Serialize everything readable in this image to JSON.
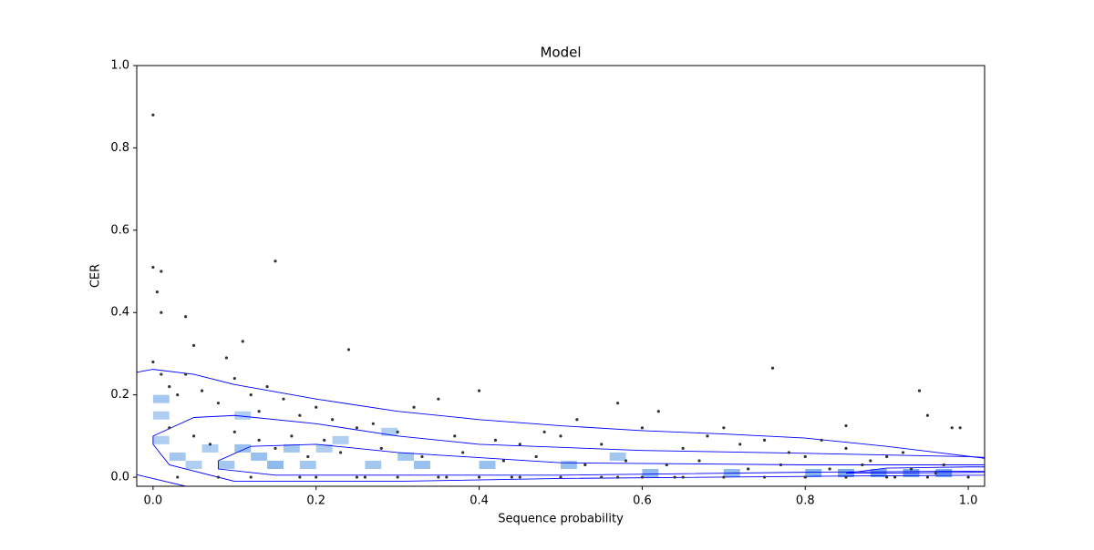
{
  "chart_data": {
    "type": "scatter",
    "title": "Model",
    "x_label": "Sequence probability",
    "y_label": "CER",
    "xlim": [
      -0.02,
      1.02
    ],
    "ylim": [
      -0.022,
      1.0
    ],
    "xticks": [
      {
        "value": 0,
        "label": "0.0"
      },
      {
        "value": 0.2,
        "label": "0.2"
      },
      {
        "value": 0.4,
        "label": "0.4"
      },
      {
        "value": 0.6,
        "label": "0.6"
      },
      {
        "value": 0.8,
        "label": "0.8"
      },
      {
        "value": 1,
        "label": "1.0"
      }
    ],
    "yticks": [
      {
        "value": 0,
        "label": "0.0"
      },
      {
        "value": 0.2,
        "label": "0.2"
      },
      {
        "value": 0.4,
        "label": "0.4"
      },
      {
        "value": 0.6,
        "label": "0.6"
      },
      {
        "value": 0.8,
        "label": "0.8"
      },
      {
        "value": 1,
        "label": "1.0"
      }
    ],
    "point_color": "#333333",
    "contour_color": "#0000ff",
    "cell_color": "#4a90e2",
    "cell_size": [
      0.02,
      0.02
    ],
    "cells": {
      "x": [
        0.0,
        0.0,
        0.0,
        0.02,
        0.04,
        0.06,
        0.08,
        0.1,
        0.1,
        0.12,
        0.14,
        0.16,
        0.18,
        0.2,
        0.22,
        0.26,
        0.28,
        0.3,
        0.32,
        0.4,
        0.5,
        0.56,
        0.6,
        0.7,
        0.8,
        0.84,
        0.88,
        0.92,
        0.96
      ],
      "y": [
        0.18,
        0.14,
        0.08,
        0.04,
        0.02,
        0.06,
        0.02,
        0.14,
        0.06,
        0.04,
        0.02,
        0.06,
        0.02,
        0.06,
        0.08,
        0.02,
        0.1,
        0.04,
        0.02,
        0.02,
        0.02,
        0.04,
        0.0,
        0.0,
        0.0,
        0.0,
        0.0,
        0.0,
        0.0
      ],
      "counts": [
        4,
        3,
        3,
        4,
        3,
        3,
        4,
        3,
        5,
        5,
        6,
        4,
        4,
        3,
        3,
        4,
        3,
        4,
        5,
        5,
        5,
        4,
        6,
        6,
        7,
        8,
        8,
        8,
        8
      ]
    },
    "x": [
      0.0,
      0.0,
      0.01,
      0.005,
      0.01,
      0.04,
      0.15,
      0.24,
      0.11,
      0.05,
      0.76,
      0.94,
      0.85,
      0.98,
      0.0,
      0.01,
      0.02,
      0.03,
      0.04,
      0.06,
      0.08,
      0.09,
      0.1,
      0.12,
      0.13,
      0.14,
      0.16,
      0.18,
      0.2,
      0.22,
      0.25,
      0.27,
      0.3,
      0.32,
      0.35,
      0.37,
      0.4,
      0.42,
      0.45,
      0.48,
      0.5,
      0.52,
      0.55,
      0.57,
      0.6,
      0.62,
      0.65,
      0.68,
      0.7,
      0.72,
      0.75,
      0.78,
      0.8,
      0.82,
      0.85,
      0.88,
      0.9,
      0.92,
      0.95,
      0.97,
      0.99,
      0.02,
      0.05,
      0.07,
      0.1,
      0.13,
      0.15,
      0.17,
      0.19,
      0.21,
      0.23,
      0.28,
      0.33,
      0.38,
      0.43,
      0.47,
      0.53,
      0.58,
      0.63,
      0.67,
      0.73,
      0.77,
      0.83,
      0.87,
      0.93,
      0.96,
      0.2,
      0.25,
      0.3,
      0.35,
      0.4,
      0.45,
      0.5,
      0.55,
      0.6,
      0.65,
      0.7,
      0.75,
      0.8,
      0.85,
      0.9,
      0.95,
      1.0,
      0.03,
      0.08,
      0.12,
      0.18,
      0.26,
      0.36,
      0.44,
      0.57,
      0.64,
      0.8,
      0.91
    ],
    "y": [
      0.88,
      0.51,
      0.5,
      0.45,
      0.4,
      0.39,
      0.525,
      0.31,
      0.33,
      0.32,
      0.265,
      0.21,
      0.125,
      0.12,
      0.28,
      0.25,
      0.22,
      0.2,
      0.25,
      0.21,
      0.18,
      0.29,
      0.24,
      0.2,
      0.16,
      0.22,
      0.19,
      0.15,
      0.17,
      0.14,
      0.12,
      0.13,
      0.11,
      0.17,
      0.19,
      0.1,
      0.21,
      0.09,
      0.08,
      0.11,
      0.1,
      0.14,
      0.08,
      0.18,
      0.12,
      0.16,
      0.07,
      0.1,
      0.12,
      0.08,
      0.09,
      0.06,
      0.05,
      0.09,
      0.07,
      0.04,
      0.05,
      0.06,
      0.15,
      0.03,
      0.12,
      0.12,
      0.1,
      0.08,
      0.11,
      0.09,
      0.07,
      0.1,
      0.05,
      0.09,
      0.06,
      0.07,
      0.05,
      0.06,
      0.04,
      0.05,
      0.03,
      0.04,
      0.03,
      0.04,
      0.02,
      0.03,
      0.02,
      0.03,
      0.02,
      0.01,
      0.0,
      0.0,
      0.0,
      0.0,
      0.0,
      0.0,
      0.0,
      0.0,
      0.0,
      0.0,
      0.0,
      0.0,
      0.0,
      0.0,
      0.0,
      0.0,
      0.0,
      0.0,
      0.0,
      0.0,
      0.0,
      0.0,
      0.0,
      0.0,
      0.0,
      0.0,
      0.0,
      0.0
    ],
    "contours": [
      {
        "x": [
          -0.02,
          0.0,
          0.05,
          0.1,
          0.2,
          0.3,
          0.4,
          0.5,
          0.6,
          0.7,
          0.8,
          0.9,
          1.02
        ],
        "y": [
          0.255,
          0.262,
          0.25,
          0.225,
          0.19,
          0.16,
          0.14,
          0.125,
          0.113,
          0.105,
          0.095,
          0.075,
          0.046
        ]
      },
      {
        "x": [
          -0.02,
          0.04
        ],
        "y": [
          0.006,
          -0.022
        ]
      },
      {
        "x": [
          0.0,
          0.05,
          0.1,
          0.2,
          0.3,
          0.4,
          0.6,
          0.8,
          1.0,
          1.02,
          1.02,
          0.8,
          0.5,
          0.3,
          0.1,
          0.02,
          0.0,
          0.0
        ],
        "y": [
          0.1,
          0.145,
          0.15,
          0.13,
          0.1,
          0.08,
          0.065,
          0.058,
          0.05,
          0.048,
          0.005,
          0.002,
          -0.003,
          -0.01,
          -0.01,
          0.03,
          0.08,
          0.1
        ]
      },
      {
        "x": [
          0.08,
          0.12,
          0.2,
          0.3,
          0.5,
          0.8,
          1.0,
          1.02,
          1.02,
          0.8,
          0.5,
          0.3,
          0.15,
          0.08,
          0.08
        ],
        "y": [
          0.04,
          0.075,
          0.08,
          0.06,
          0.035,
          0.03,
          0.03,
          0.03,
          0.015,
          0.012,
          0.005,
          0.005,
          0.005,
          0.02,
          0.04
        ]
      },
      {
        "x": [
          0.85,
          0.9,
          1.0,
          1.02,
          1.02,
          0.9,
          0.85
        ],
        "y": [
          0.01,
          0.022,
          0.025,
          0.025,
          0.012,
          0.01,
          0.01
        ]
      }
    ]
  }
}
